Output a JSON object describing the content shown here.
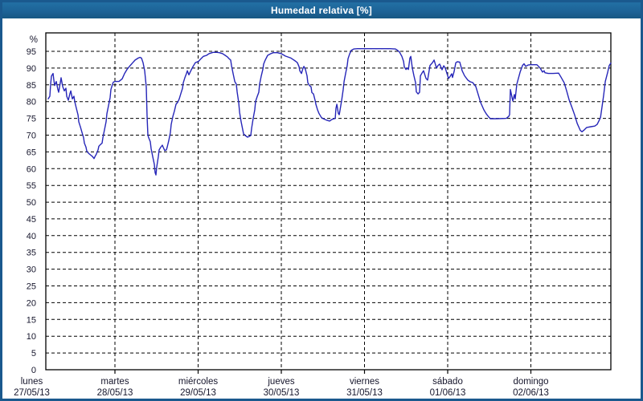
{
  "window": {
    "title": "Humedad relativa [%]"
  },
  "colors": {
    "window_border": "#1a598e",
    "titlebar_bg": "#1d6397",
    "titlebar_text": "#ffffff",
    "chart_bg": "#ffffff",
    "line": "#2626b8",
    "grid": "#000000",
    "axis_text": "#16162c"
  },
  "chart_data": {
    "type": "line",
    "title": "Humedad relativa [%]",
    "y_unit": "%",
    "ylabel": "Humedad relativa",
    "ylim": [
      0,
      100.5
    ],
    "y_ticks": [
      0,
      5,
      10,
      15,
      20,
      25,
      30,
      35,
      40,
      45,
      50,
      55,
      60,
      65,
      70,
      75,
      80,
      85,
      90,
      95
    ],
    "grid": "dashed",
    "legend": "none",
    "xlim_days": [
      0.169,
      6.961
    ],
    "x_days": [
      {
        "day": 0,
        "name": "lunes",
        "date": "27/05/13"
      },
      {
        "day": 1,
        "name": "martes",
        "date": "28/05/13"
      },
      {
        "day": 2,
        "name": "miércoles",
        "date": "29/05/13"
      },
      {
        "day": 3,
        "name": "jueves",
        "date": "30/05/13"
      },
      {
        "day": 4,
        "name": "viernes",
        "date": "31/05/13"
      },
      {
        "day": 5,
        "name": "sábado",
        "date": "01/06/13"
      },
      {
        "day": 6,
        "name": "domingo",
        "date": "02/06/13"
      }
    ],
    "series": [
      {
        "name": "Humedad relativa",
        "points": [
          [
            0.198,
            80.8
          ],
          [
            0.217,
            81.6
          ],
          [
            0.227,
            85.2
          ],
          [
            0.237,
            87.6
          ],
          [
            0.256,
            88.4
          ],
          [
            0.266,
            86.4
          ],
          [
            0.275,
            84.8
          ],
          [
            0.295,
            86.0
          ],
          [
            0.314,
            83.6
          ],
          [
            0.324,
            82.8
          ],
          [
            0.343,
            85.6
          ],
          [
            0.353,
            87.1
          ],
          [
            0.372,
            84.5
          ],
          [
            0.391,
            83.2
          ],
          [
            0.411,
            84.0
          ],
          [
            0.42,
            81.6
          ],
          [
            0.44,
            80.4
          ],
          [
            0.459,
            82.4
          ],
          [
            0.469,
            83.2
          ],
          [
            0.488,
            80.8
          ],
          [
            0.507,
            81.6
          ],
          [
            0.517,
            80.0
          ],
          [
            0.536,
            78.0
          ],
          [
            0.556,
            76.0
          ],
          [
            0.565,
            74.0
          ],
          [
            0.585,
            72.4
          ],
          [
            0.604,
            70.8
          ],
          [
            0.623,
            69.2
          ],
          [
            0.633,
            67.6
          ],
          [
            0.652,
            66.4
          ],
          [
            0.662,
            65.2
          ],
          [
            0.681,
            64.6
          ],
          [
            0.71,
            64.0
          ],
          [
            0.73,
            63.6
          ],
          [
            0.749,
            63.0
          ],
          [
            0.758,
            63.5
          ],
          [
            0.778,
            64.4
          ],
          [
            0.797,
            65.6
          ],
          [
            0.807,
            66.7
          ],
          [
            0.826,
            67.2
          ],
          [
            0.845,
            67.6
          ],
          [
            0.855,
            69.2
          ],
          [
            0.874,
            71.6
          ],
          [
            0.894,
            74.0
          ],
          [
            0.903,
            76.4
          ],
          [
            0.923,
            78.8
          ],
          [
            0.942,
            81.2
          ],
          [
            0.952,
            83.6
          ],
          [
            0.971,
            85.2
          ],
          [
            0.981,
            85.8
          ],
          [
            1.0,
            86.0
          ],
          [
            1.048,
            86.0
          ],
          [
            1.087,
            86.8
          ],
          [
            1.116,
            88.4
          ],
          [
            1.145,
            89.6
          ],
          [
            1.184,
            90.8
          ],
          [
            1.213,
            91.6
          ],
          [
            1.242,
            92.4
          ],
          [
            1.28,
            93.0
          ],
          [
            1.3,
            93.2
          ],
          [
            1.319,
            93.0
          ],
          [
            1.338,
            91.6
          ],
          [
            1.357,
            89.2
          ],
          [
            1.377,
            84.3
          ],
          [
            1.386,
            75.6
          ],
          [
            1.396,
            70.0
          ],
          [
            1.406,
            69.2
          ],
          [
            1.425,
            68.0
          ],
          [
            1.435,
            66.0
          ],
          [
            1.454,
            63.6
          ],
          [
            1.473,
            61.3
          ],
          [
            1.483,
            58.8
          ],
          [
            1.493,
            58.1
          ],
          [
            1.502,
            60.5
          ],
          [
            1.522,
            63.6
          ],
          [
            1.531,
            65.6
          ],
          [
            1.551,
            66.4
          ],
          [
            1.57,
            67.0
          ],
          [
            1.58,
            66.4
          ],
          [
            1.599,
            65.4
          ],
          [
            1.618,
            65.6
          ],
          [
            1.628,
            66.4
          ],
          [
            1.647,
            68.4
          ],
          [
            1.667,
            70.8
          ],
          [
            1.676,
            73.2
          ],
          [
            1.696,
            75.6
          ],
          [
            1.715,
            77.2
          ],
          [
            1.734,
            79.2
          ],
          [
            1.754,
            79.8
          ],
          [
            1.773,
            80.8
          ],
          [
            1.792,
            82.4
          ],
          [
            1.812,
            84.0
          ],
          [
            1.821,
            85.6
          ],
          [
            1.841,
            87.2
          ],
          [
            1.86,
            88.4
          ],
          [
            1.87,
            89.2
          ],
          [
            1.889,
            88.0
          ],
          [
            1.908,
            89.0
          ],
          [
            1.937,
            90.4
          ],
          [
            1.966,
            91.6
          ],
          [
            2.005,
            92.0
          ],
          [
            2.034,
            92.8
          ],
          [
            2.063,
            93.5
          ],
          [
            2.101,
            93.8
          ],
          [
            2.13,
            94.3
          ],
          [
            2.179,
            94.7
          ],
          [
            2.227,
            94.7
          ],
          [
            2.256,
            94.6
          ],
          [
            2.295,
            94.3
          ],
          [
            2.324,
            93.8
          ],
          [
            2.353,
            93.3
          ],
          [
            2.372,
            92.8
          ],
          [
            2.391,
            92.4
          ],
          [
            2.401,
            90.8
          ],
          [
            2.42,
            88.4
          ],
          [
            2.44,
            86.0
          ],
          [
            2.459,
            85.2
          ],
          [
            2.469,
            82.8
          ],
          [
            2.488,
            79.7
          ],
          [
            2.498,
            76.8
          ],
          [
            2.517,
            74.0
          ],
          [
            2.536,
            71.6
          ],
          [
            2.546,
            70.4
          ],
          [
            2.565,
            69.9
          ],
          [
            2.594,
            69.4
          ],
          [
            2.614,
            69.6
          ],
          [
            2.633,
            69.9
          ],
          [
            2.643,
            72.1
          ],
          [
            2.662,
            75.0
          ],
          [
            2.681,
            77.6
          ],
          [
            2.691,
            80.1
          ],
          [
            2.71,
            81.5
          ],
          [
            2.729,
            82.8
          ],
          [
            2.739,
            85.2
          ],
          [
            2.758,
            87.6
          ],
          [
            2.778,
            89.6
          ],
          [
            2.787,
            91.2
          ],
          [
            2.807,
            92.4
          ],
          [
            2.836,
            93.8
          ],
          [
            2.874,
            94.3
          ],
          [
            2.903,
            94.6
          ],
          [
            2.952,
            94.6
          ],
          [
            3.0,
            94.3
          ],
          [
            3.048,
            93.6
          ],
          [
            3.116,
            93.0
          ],
          [
            3.145,
            92.5
          ],
          [
            3.174,
            92.0
          ],
          [
            3.193,
            91.6
          ],
          [
            3.213,
            90.4
          ],
          [
            3.222,
            89.2
          ],
          [
            3.242,
            88.4
          ],
          [
            3.261,
            90.0
          ],
          [
            3.271,
            90.5
          ],
          [
            3.29,
            89.6
          ],
          [
            3.309,
            87.7
          ],
          [
            3.319,
            85.6
          ],
          [
            3.338,
            84.8
          ],
          [
            3.357,
            84.4
          ],
          [
            3.367,
            82.7
          ],
          [
            3.386,
            82.3
          ],
          [
            3.406,
            80.4
          ],
          [
            3.415,
            79.2
          ],
          [
            3.435,
            77.6
          ],
          [
            3.454,
            76.4
          ],
          [
            3.483,
            75.2
          ],
          [
            3.512,
            74.8
          ],
          [
            3.551,
            74.4
          ],
          [
            3.58,
            74.2
          ],
          [
            3.609,
            74.7
          ],
          [
            3.648,
            75.0
          ],
          [
            3.657,
            78.0
          ],
          [
            3.667,
            79.2
          ],
          [
            3.686,
            76.4
          ],
          [
            3.696,
            76.1
          ],
          [
            3.725,
            80.4
          ],
          [
            3.744,
            83.6
          ],
          [
            3.754,
            86.0
          ],
          [
            3.773,
            88.4
          ],
          [
            3.792,
            90.8
          ],
          [
            3.802,
            92.8
          ],
          [
            3.821,
            94.2
          ],
          [
            3.841,
            95.3
          ],
          [
            3.87,
            95.7
          ],
          [
            3.918,
            95.8
          ],
          [
            3.966,
            95.8
          ],
          [
            4.014,
            95.8
          ],
          [
            4.111,
            95.8
          ],
          [
            4.208,
            95.8
          ],
          [
            4.304,
            95.8
          ],
          [
            4.372,
            95.7
          ],
          [
            4.391,
            95.4
          ],
          [
            4.42,
            94.8
          ],
          [
            4.449,
            93.5
          ],
          [
            4.469,
            92.0
          ],
          [
            4.478,
            90.4
          ],
          [
            4.498,
            89.6
          ],
          [
            4.517,
            90.0
          ],
          [
            4.527,
            89.6
          ],
          [
            4.546,
            93.0
          ],
          [
            4.556,
            93.5
          ],
          [
            4.575,
            90.0
          ],
          [
            4.594,
            87.7
          ],
          [
            4.614,
            85.6
          ],
          [
            4.623,
            82.9
          ],
          [
            4.643,
            82.3
          ],
          [
            4.662,
            82.8
          ],
          [
            4.672,
            87.7
          ],
          [
            4.691,
            88.5
          ],
          [
            4.71,
            89.2
          ],
          [
            4.739,
            86.9
          ],
          [
            4.758,
            86.4
          ],
          [
            4.787,
            90.8
          ],
          [
            4.816,
            91.6
          ],
          [
            4.836,
            92.4
          ],
          [
            4.865,
            90.0
          ],
          [
            4.884,
            90.8
          ],
          [
            4.903,
            91.2
          ],
          [
            4.932,
            89.5
          ],
          [
            4.952,
            90.7
          ],
          [
            4.971,
            90.0
          ],
          [
            5.0,
            87.7
          ],
          [
            5.01,
            86.9
          ],
          [
            5.029,
            87.5
          ],
          [
            5.048,
            88.3
          ],
          [
            5.058,
            87.2
          ],
          [
            5.077,
            89.0
          ],
          [
            5.097,
            91.6
          ],
          [
            5.116,
            91.9
          ],
          [
            5.145,
            91.8
          ],
          [
            5.174,
            89.2
          ],
          [
            5.203,
            87.7
          ],
          [
            5.242,
            86.4
          ],
          [
            5.271,
            85.9
          ],
          [
            5.3,
            85.7
          ],
          [
            5.338,
            84.5
          ],
          [
            5.367,
            82.1
          ],
          [
            5.396,
            79.7
          ],
          [
            5.435,
            77.5
          ],
          [
            5.464,
            76.3
          ],
          [
            5.493,
            75.4
          ],
          [
            5.512,
            74.9
          ],
          [
            5.589,
            74.9
          ],
          [
            5.705,
            75.0
          ],
          [
            5.734,
            75.6
          ],
          [
            5.744,
            76.1
          ],
          [
            5.753,
            83.6
          ],
          [
            5.782,
            80.2
          ],
          [
            5.802,
            82.1
          ],
          [
            5.811,
            80.8
          ],
          [
            5.831,
            85.2
          ],
          [
            5.87,
            88.8
          ],
          [
            5.899,
            90.8
          ],
          [
            5.918,
            91.3
          ],
          [
            5.937,
            90.5
          ],
          [
            5.966,
            90.9
          ],
          [
            5.995,
            91.0
          ],
          [
            6.034,
            91.0
          ],
          [
            6.072,
            91.0
          ],
          [
            6.111,
            90.0
          ],
          [
            6.14,
            88.8
          ],
          [
            6.159,
            89.2
          ],
          [
            6.169,
            88.6
          ],
          [
            6.208,
            88.4
          ],
          [
            6.266,
            88.4
          ],
          [
            6.333,
            88.5
          ],
          [
            6.362,
            87.3
          ],
          [
            6.401,
            85.6
          ],
          [
            6.43,
            83.2
          ],
          [
            6.459,
            80.6
          ],
          [
            6.497,
            78.0
          ],
          [
            6.527,
            75.9
          ],
          [
            6.556,
            73.5
          ],
          [
            6.594,
            71.4
          ],
          [
            6.614,
            71.0
          ],
          [
            6.643,
            71.6
          ],
          [
            6.671,
            72.3
          ],
          [
            6.72,
            72.5
          ],
          [
            6.768,
            72.7
          ],
          [
            6.797,
            73.2
          ],
          [
            6.836,
            75.2
          ],
          [
            6.855,
            78.4
          ],
          [
            6.875,
            82.0
          ],
          [
            6.894,
            86.0
          ],
          [
            6.923,
            88.8
          ],
          [
            6.942,
            90.8
          ],
          [
            6.961,
            91.5
          ]
        ]
      }
    ]
  }
}
